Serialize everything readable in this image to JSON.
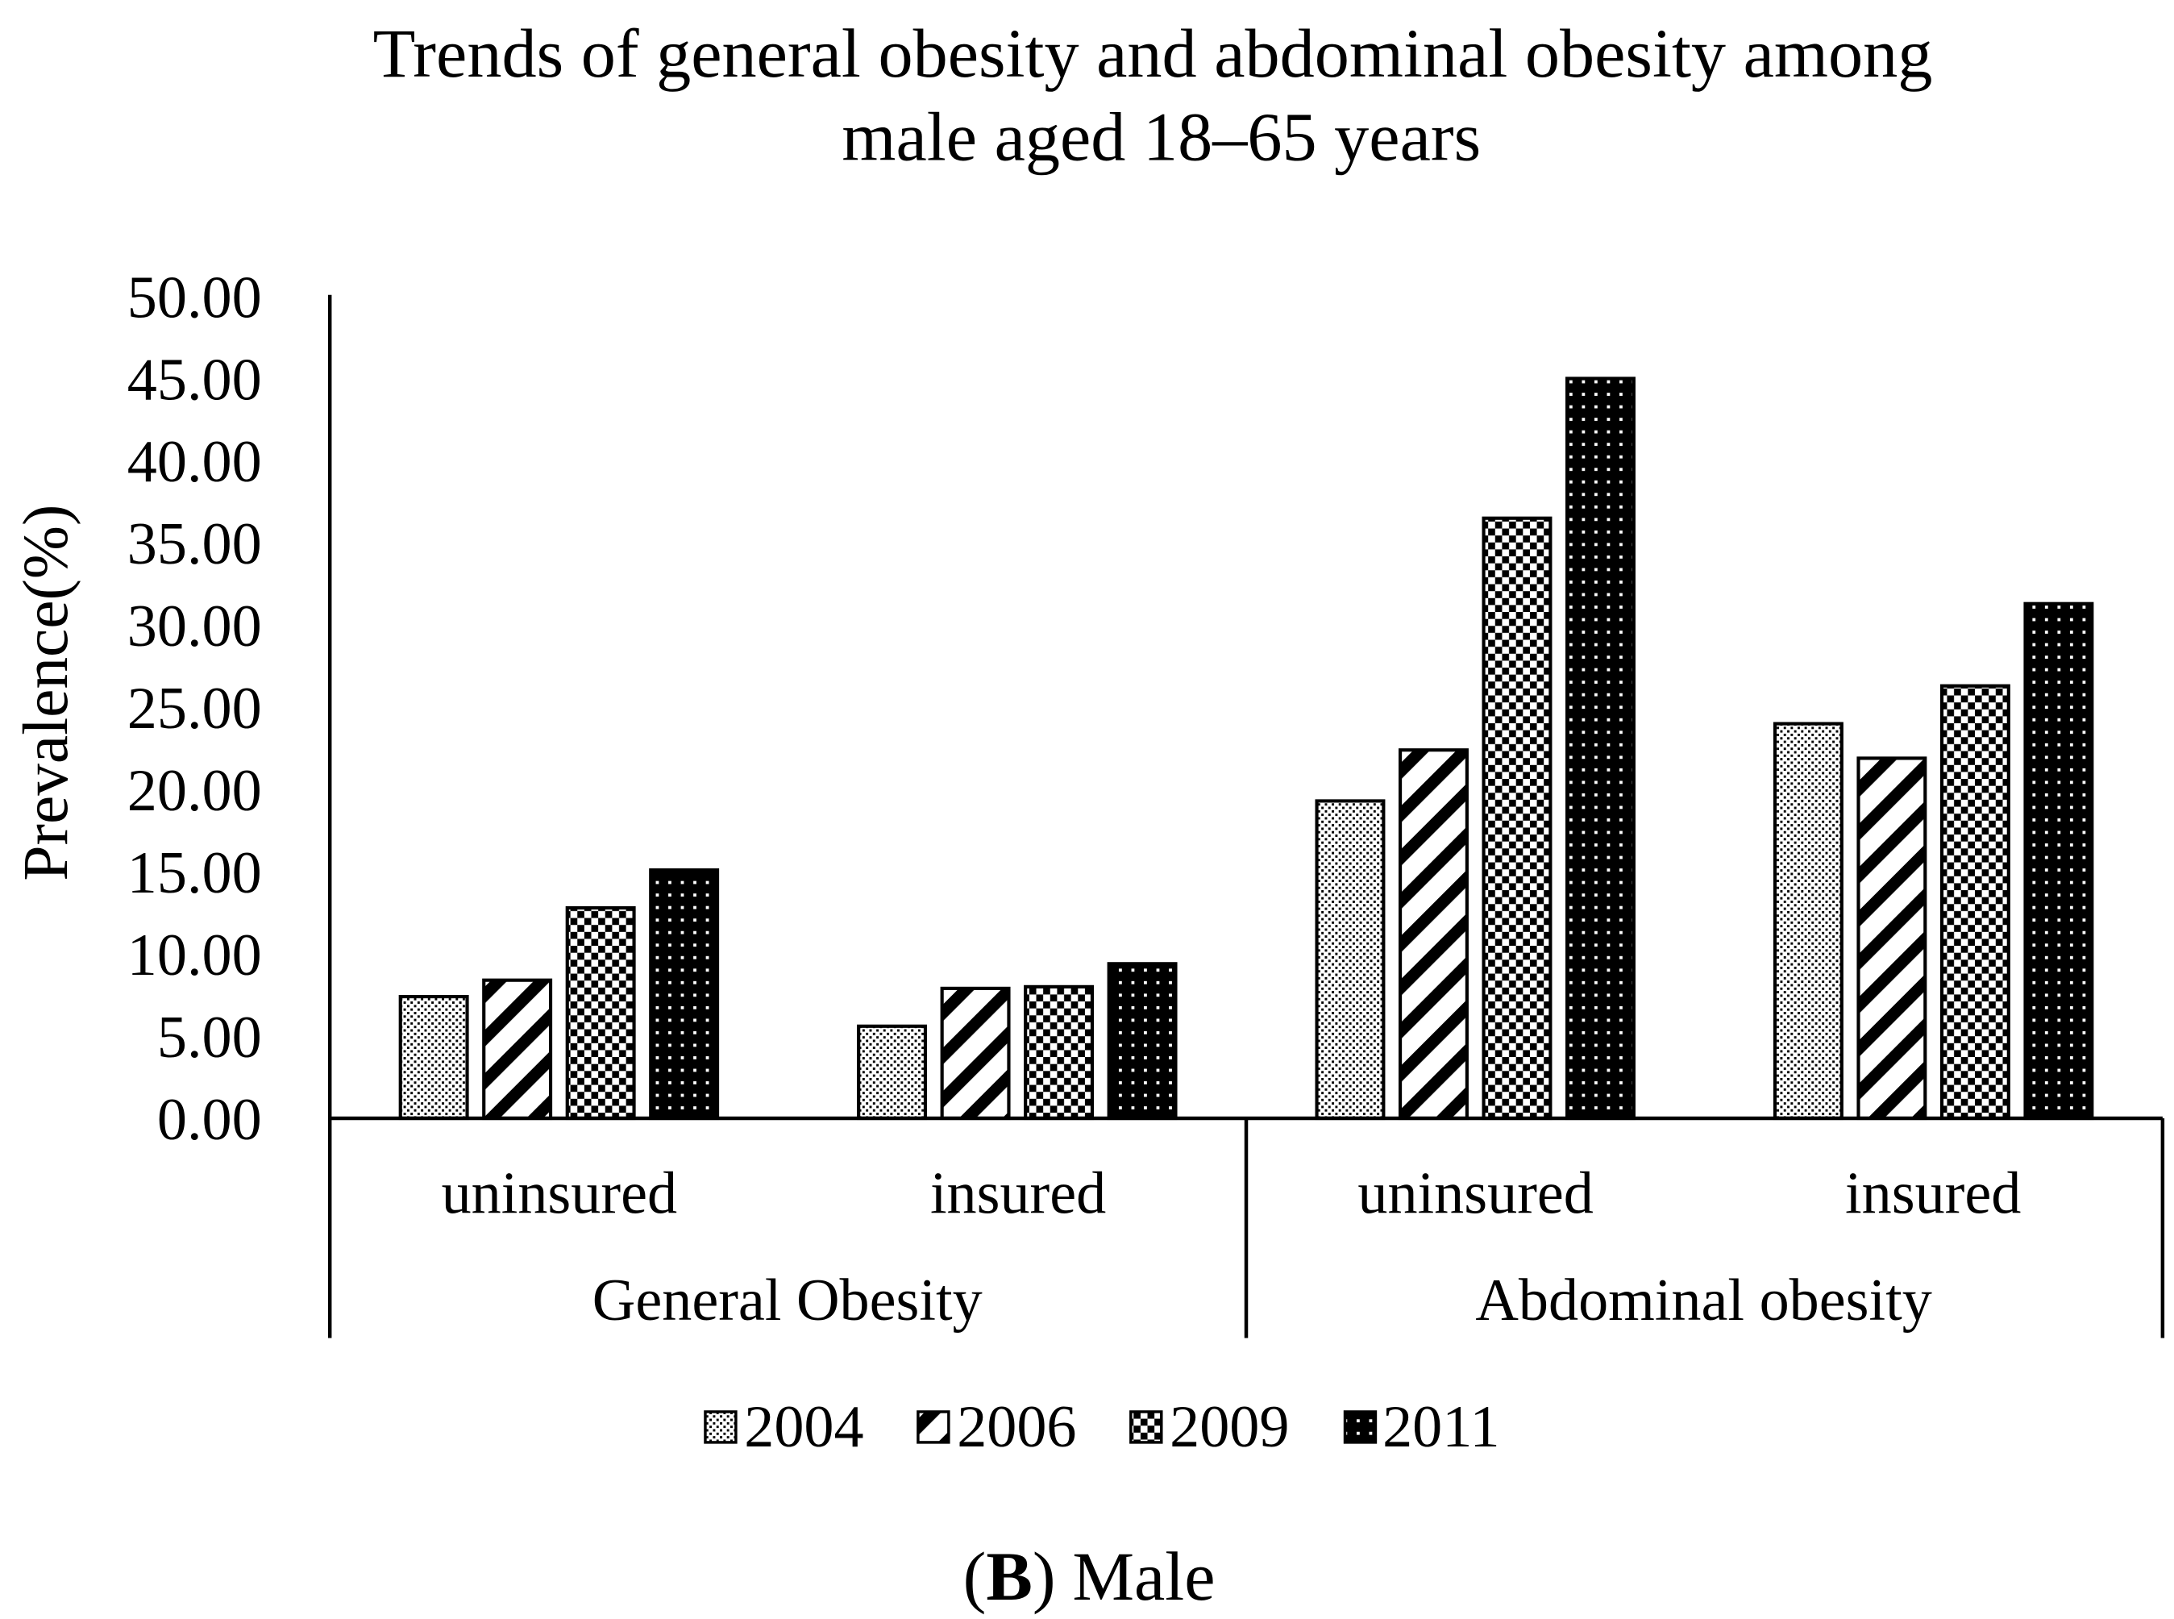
{
  "chart_data": {
    "type": "bar",
    "title_lines": [
      "Trends of general obesity and abdominal obesity among",
      "male aged 18–65 years"
    ],
    "xlabel": "",
    "ylabel": "Prevalence(%)",
    "ylim": [
      0,
      50
    ],
    "yticks": [
      0,
      5,
      10,
      15,
      20,
      25,
      30,
      35,
      40,
      45,
      50
    ],
    "tick_decimals": 2,
    "grid": false,
    "legend": "bottom",
    "groups": [
      {
        "name": "General Obesity",
        "categories": [
          "uninsured",
          "insured"
        ]
      },
      {
        "name": "Abdominal obesity",
        "categories": [
          "uninsured",
          "insured"
        ]
      }
    ],
    "series": [
      {
        "name": "2004",
        "pattern": "fine-dots",
        "values": [
          7.4,
          5.6,
          19.3,
          24.0
        ]
      },
      {
        "name": "2006",
        "pattern": "wide-diagonal",
        "values": [
          8.4,
          7.9,
          22.4,
          21.9
        ]
      },
      {
        "name": "2009",
        "pattern": "checker",
        "values": [
          12.8,
          8.0,
          36.5,
          26.3
        ]
      },
      {
        "name": "2011",
        "pattern": "black-dots",
        "values": [
          15.1,
          9.4,
          45.0,
          31.3
        ]
      }
    ]
  },
  "caption": {
    "open": "(",
    "panel": "B",
    "close": ")",
    "text": "Male"
  }
}
